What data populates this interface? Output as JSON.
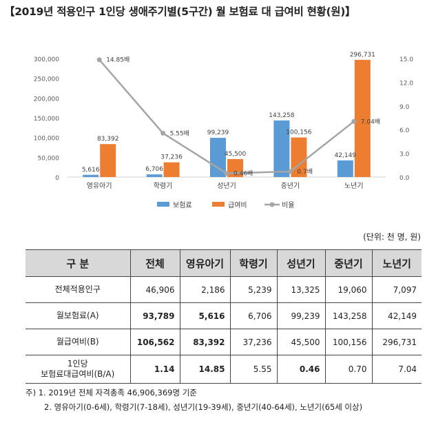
{
  "title": "【2019년 적용인구 1인당 생애주기별(5구간) 월 보험료 대 급여비 현황(원)】",
  "chart_data": {
    "type": "bar+line",
    "categories": [
      "영유아기",
      "학령기",
      "성년기",
      "중년기",
      "노년기"
    ],
    "series": [
      {
        "name": "보험료",
        "type": "bar",
        "axis": "left",
        "color": "#5b9bd5",
        "values": [
          5616,
          6706,
          99239,
          143258,
          42149
        ],
        "labels": [
          "5,616",
          "6,706",
          "99,239",
          "143,258",
          "42,149"
        ]
      },
      {
        "name": "급여비",
        "type": "bar",
        "axis": "left",
        "color": "#ed7d31",
        "values": [
          83392,
          37236,
          45500,
          100156,
          296731
        ],
        "labels": [
          "83,392",
          "37,236",
          "45,500",
          "100,156",
          "296,731"
        ]
      },
      {
        "name": "비율",
        "type": "line",
        "axis": "right",
        "color": "#a5a5a5",
        "values": [
          14.85,
          5.55,
          0.46,
          0.7,
          7.04
        ],
        "labels": [
          "14.85배",
          "5.55배",
          "0.46배",
          "0.7배",
          "7.04배"
        ]
      }
    ],
    "y_left": {
      "min": 0,
      "max": 300000,
      "ticks": [
        "0",
        "50,000",
        "100,000",
        "150,000",
        "200,000",
        "250,000",
        "300,000"
      ]
    },
    "y_right": {
      "min": 0,
      "max": 15,
      "ticks": [
        "0.0",
        "3.0",
        "6.0",
        "9.0",
        "12.0",
        "15.0"
      ]
    },
    "grid": false,
    "legend_position": "bottom"
  },
  "unit_label": "(단위: 천 명, 원)",
  "table": {
    "headers": [
      "구  분",
      "전체",
      "영유아기",
      "학령기",
      "성년기",
      "중년기",
      "노년기"
    ],
    "rows": [
      {
        "label": [
          "전체적용인구"
        ],
        "cells": [
          "46,906",
          "2,186",
          "5,239",
          "13,325",
          "19,060",
          "7,097"
        ],
        "bold": [
          false,
          false,
          false,
          false,
          false,
          false
        ]
      },
      {
        "label": [
          "월보험료(A)"
        ],
        "cells": [
          "93,789",
          "5,616",
          "6,706",
          "99,239",
          "143,258",
          "42,149"
        ],
        "bold": [
          true,
          true,
          false,
          false,
          false,
          false
        ]
      },
      {
        "label": [
          "월급여비(B)"
        ],
        "cells": [
          "106,562",
          "83,392",
          "37,236",
          "45,500",
          "100,156",
          "296,731"
        ],
        "bold": [
          true,
          true,
          false,
          false,
          false,
          false
        ]
      },
      {
        "label": [
          "1인당",
          "보험료대급여비(B/A)"
        ],
        "cells": [
          "1.14",
          "14.85",
          "5.55",
          "0.46",
          "0.70",
          "7.04"
        ],
        "bold": [
          true,
          true,
          false,
          true,
          false,
          false
        ]
      }
    ]
  },
  "notes": [
    "주) 1. 2019년 전체 자격총족 46,906,369명 기준",
    "2. 영유아기(0-6세), 학령기(7-18세), 성년기(19-39세), 중년기(40-64세), 노년기(65세 이상)"
  ]
}
